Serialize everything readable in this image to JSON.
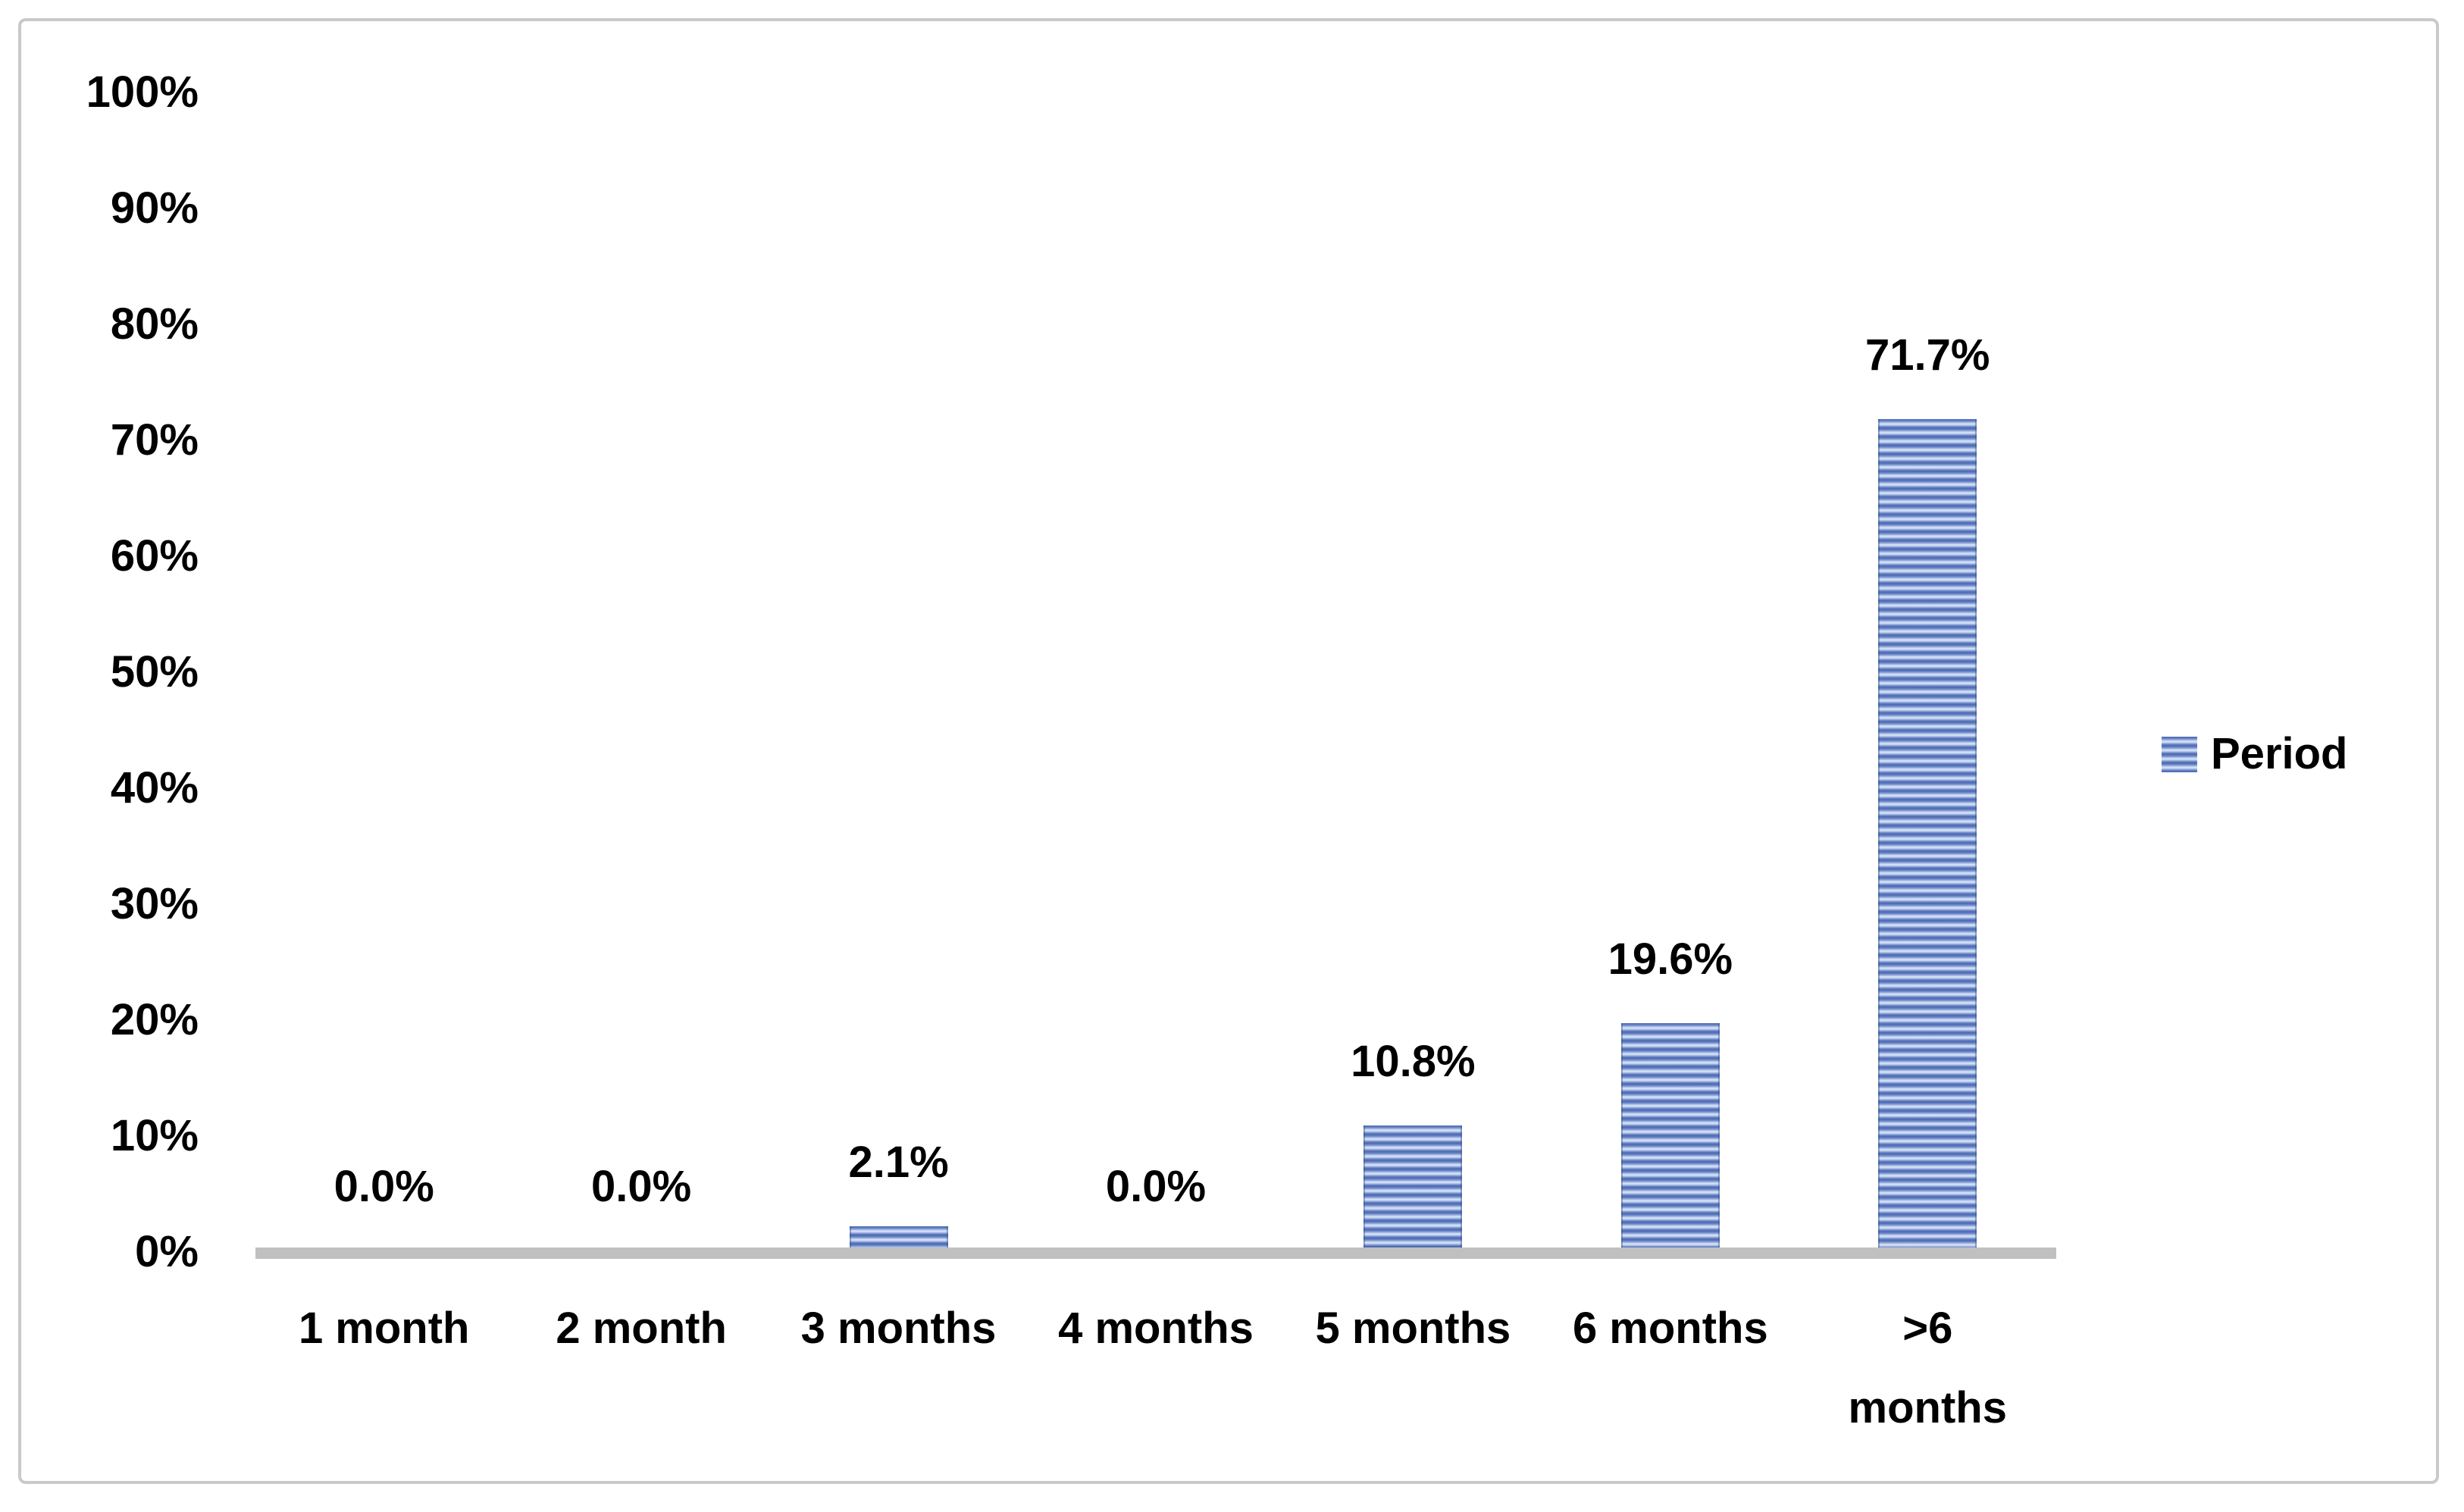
{
  "chart_data": {
    "type": "bar",
    "title": "",
    "categories": [
      "1 month",
      "2 month",
      "3 months",
      "4 months",
      "5 months",
      "6 months",
      ">6\nmonths"
    ],
    "values": [
      0.0,
      0.0,
      2.1,
      0.0,
      10.8,
      19.6,
      71.7
    ],
    "data_labels": [
      "0.0%",
      "0.0%",
      "2.1%",
      "0.0%",
      "10.8%",
      "19.6%",
      "71.7%"
    ],
    "series": [
      {
        "name": "Period",
        "values": [
          0.0,
          0.0,
          2.1,
          0.0,
          10.8,
          19.6,
          71.7
        ]
      }
    ],
    "yticks": [
      "100%",
      "90%",
      "80%",
      "70%",
      "60%",
      "50%",
      "40%",
      "30%",
      "20%",
      "10%",
      "0%"
    ],
    "ylim": [
      0,
      100
    ],
    "ytick_step": 10,
    "xlabel": "",
    "ylabel": "",
    "grid": false,
    "legend": {
      "label": "Period",
      "position": "right"
    },
    "colors": {
      "bar_stripe_dark": "#4d69b1",
      "bar_stripe_mid": "#8fa5d8",
      "bar_stripe_light": "#d7e2f7",
      "axis_line": "#c0c0c0",
      "frame_border": "#c9c9c9",
      "text": "#000000",
      "background": "#ffffff"
    }
  }
}
